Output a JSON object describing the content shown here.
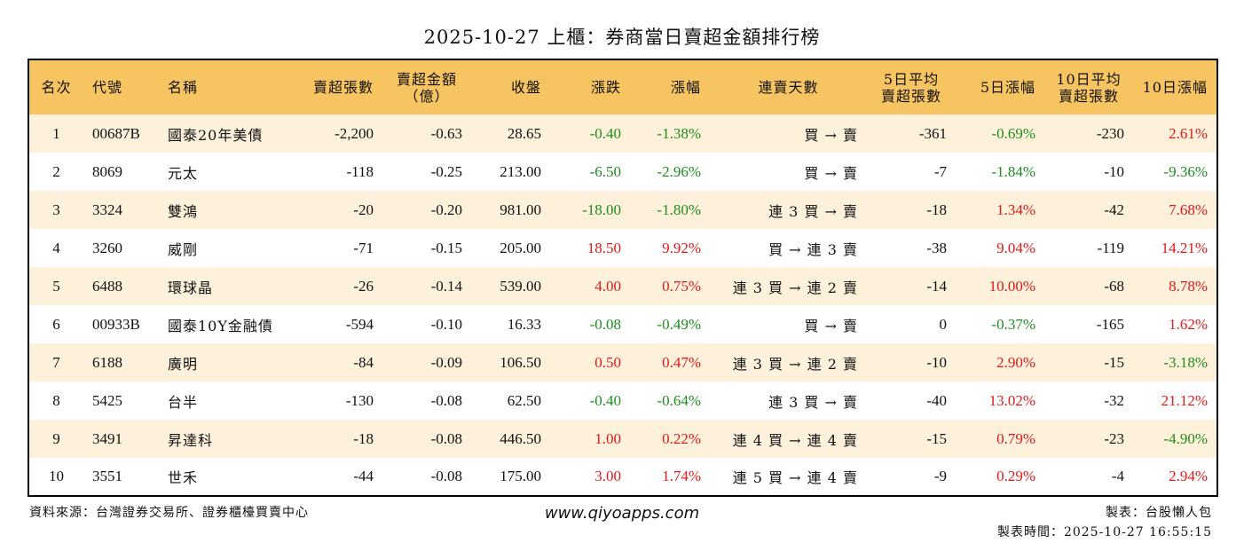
{
  "title": "2025-10-27 上櫃：券商當日賣超金額排行榜",
  "headers": {
    "rank": "名次",
    "code": "代號",
    "name": "名稱",
    "sell_volume": "賣超張數",
    "sell_amount_1": "賣超金額",
    "sell_amount_2": "（億）",
    "close": "收盤",
    "change": "漲跌",
    "change_pct": "漲幅",
    "streak": "連賣天數",
    "avg5_1": "5日平均",
    "avg5_2": "賣超張數",
    "pct5": "5日漲幅",
    "avg10_1": "10日平均",
    "avg10_2": "賣超張數",
    "pct10": "10日漲幅"
  },
  "rows": [
    {
      "rank": "1",
      "code": "00687B",
      "name": "國泰20年美債",
      "vol": "-2,200",
      "amt": "-0.63",
      "close": "28.65",
      "chg": "-0.40",
      "pct": "-1.38%",
      "streak": "買 → 賣",
      "avg5": "-361",
      "pct5": "-0.69%",
      "avg10": "-230",
      "pct10": "2.61%"
    },
    {
      "rank": "2",
      "code": "8069",
      "name": "元太",
      "vol": "-118",
      "amt": "-0.25",
      "close": "213.00",
      "chg": "-6.50",
      "pct": "-2.96%",
      "streak": "買 → 賣",
      "avg5": "-7",
      "pct5": "-1.84%",
      "avg10": "-10",
      "pct10": "-9.36%"
    },
    {
      "rank": "3",
      "code": "3324",
      "name": "雙鴻",
      "vol": "-20",
      "amt": "-0.20",
      "close": "981.00",
      "chg": "-18.00",
      "pct": "-1.80%",
      "streak": "連 3 買 → 賣",
      "avg5": "-18",
      "pct5": "1.34%",
      "avg10": "-42",
      "pct10": "7.68%"
    },
    {
      "rank": "4",
      "code": "3260",
      "name": "威剛",
      "vol": "-71",
      "amt": "-0.15",
      "close": "205.00",
      "chg": "18.50",
      "pct": "9.92%",
      "streak": "買 → 連 3 賣",
      "avg5": "-38",
      "pct5": "9.04%",
      "avg10": "-119",
      "pct10": "14.21%"
    },
    {
      "rank": "5",
      "code": "6488",
      "name": "環球晶",
      "vol": "-26",
      "amt": "-0.14",
      "close": "539.00",
      "chg": "4.00",
      "pct": "0.75%",
      "streak": "連 3 買 → 連 2 賣",
      "avg5": "-14",
      "pct5": "10.00%",
      "avg10": "-68",
      "pct10": "8.78%"
    },
    {
      "rank": "6",
      "code": "00933B",
      "name": "國泰10Y金融債",
      "vol": "-594",
      "amt": "-0.10",
      "close": "16.33",
      "chg": "-0.08",
      "pct": "-0.49%",
      "streak": "買 → 賣",
      "avg5": "0",
      "pct5": "-0.37%",
      "avg10": "-165",
      "pct10": "1.62%"
    },
    {
      "rank": "7",
      "code": "6188",
      "name": "廣明",
      "vol": "-84",
      "amt": "-0.09",
      "close": "106.50",
      "chg": "0.50",
      "pct": "0.47%",
      "streak": "連 3 買 → 連 2 賣",
      "avg5": "-10",
      "pct5": "2.90%",
      "avg10": "-15",
      "pct10": "-3.18%"
    },
    {
      "rank": "8",
      "code": "5425",
      "name": "台半",
      "vol": "-130",
      "amt": "-0.08",
      "close": "62.50",
      "chg": "-0.40",
      "pct": "-0.64%",
      "streak": "連 3 買 → 賣",
      "avg5": "-40",
      "pct5": "13.02%",
      "avg10": "-32",
      "pct10": "21.12%"
    },
    {
      "rank": "9",
      "code": "3491",
      "name": "昇達科",
      "vol": "-18",
      "amt": "-0.08",
      "close": "446.50",
      "chg": "1.00",
      "pct": "0.22%",
      "streak": "連 4 買 → 連 4 賣",
      "avg5": "-15",
      "pct5": "0.79%",
      "avg10": "-23",
      "pct10": "-4.90%"
    },
    {
      "rank": "10",
      "code": "3551",
      "name": "世禾",
      "vol": "-44",
      "amt": "-0.08",
      "close": "175.00",
      "chg": "3.00",
      "pct": "1.74%",
      "streak": "連 5 買 → 連 4 賣",
      "avg5": "-9",
      "pct5": "0.29%",
      "avg10": "-4",
      "pct10": "2.94%"
    }
  ],
  "footer": {
    "source": "資料來源：台灣證券交易所、證券櫃檯買賣中心",
    "website": "www.qiyoapps.com",
    "maker": "製表：台股懶人包",
    "time": "製表時間：2025-10-27 16:55:15"
  },
  "colors": {
    "header_bg": "#F6C460",
    "stripe_bg": "#FDF1DB",
    "positive": "#E01919",
    "negative": "#1E8C1E"
  }
}
